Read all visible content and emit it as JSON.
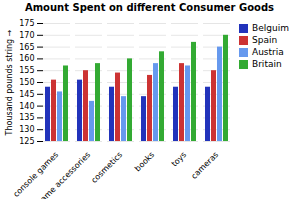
{
  "chart_data": {
    "type": "bar",
    "title": "Amount Spent on different Consumer Goods",
    "ylabel": "Thousand pounds string",
    "categories": [
      "console games",
      "game accessories",
      "cosmetics",
      "books",
      "toys",
      "cameras"
    ],
    "series": [
      {
        "name": "Belguim",
        "color": "#2233bb",
        "values": [
          148,
          151,
          148,
          144,
          148,
          148
        ]
      },
      {
        "name": "Spain",
        "color": "#cc3333",
        "values": [
          151,
          155,
          154,
          153,
          158,
          155
        ]
      },
      {
        "name": "Austria",
        "color": "#6699ee",
        "values": [
          146,
          142,
          144,
          158,
          157,
          165
        ]
      },
      {
        "name": "Britain",
        "color": "#33aa33",
        "values": [
          157,
          158,
          160,
          163,
          167,
          170
        ]
      }
    ],
    "ylim": [
      125,
      175
    ],
    "yticks": [
      125,
      130,
      135,
      140,
      145,
      150,
      155,
      160,
      165,
      170,
      175
    ],
    "legend": "upper right",
    "grid": true
  }
}
